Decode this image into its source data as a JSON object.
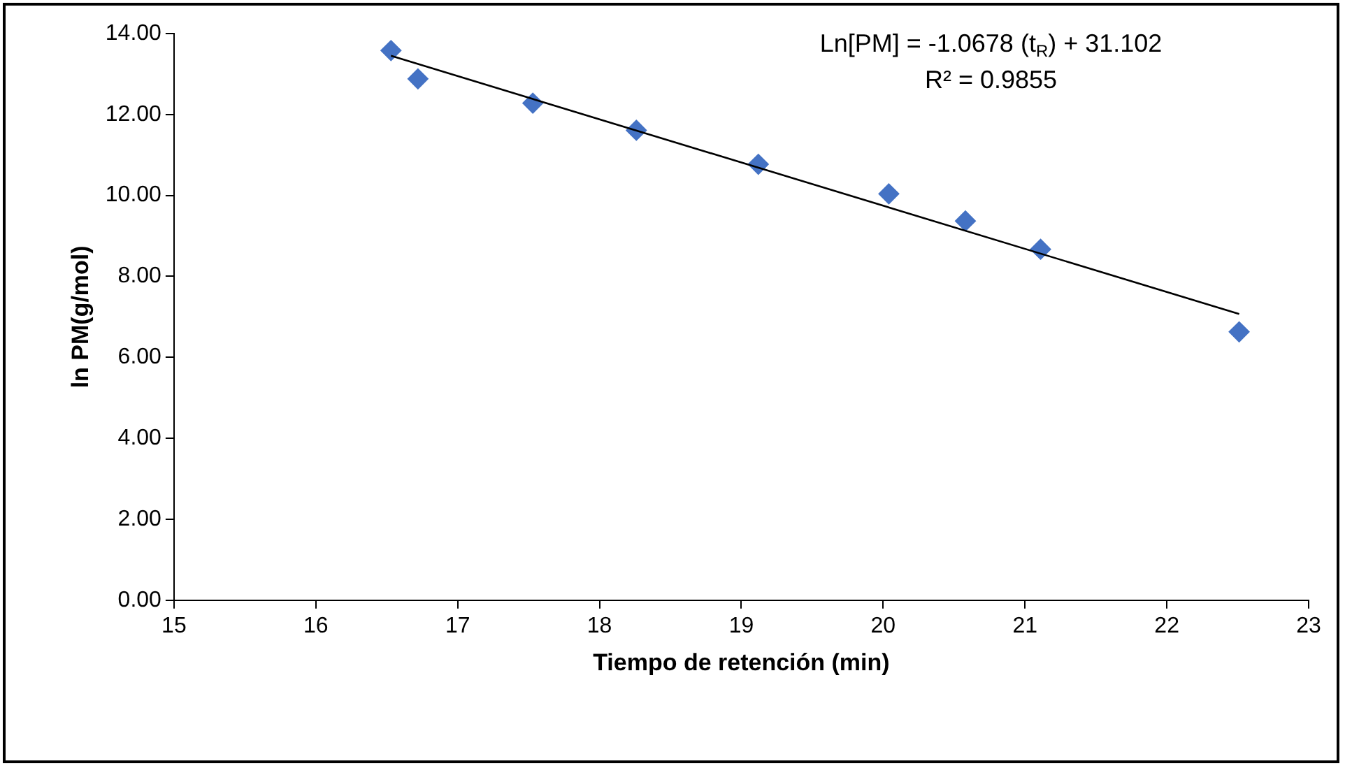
{
  "chart_data": {
    "type": "scatter",
    "xlabel": "Tiempo de retención (min)",
    "ylabel": "ln PM(g/mol)",
    "series": [
      {
        "type": "scatter",
        "color": "#4472c4",
        "x": [
          16.53,
          16.72,
          17.53,
          18.26,
          19.12,
          20.04,
          20.58,
          21.11,
          22.51
        ],
        "values": [
          13.58,
          12.88,
          12.28,
          11.61,
          10.77,
          10.04,
          9.37,
          8.67,
          6.63
        ],
        "marker": "diamond"
      },
      {
        "type": "line",
        "color": "#000000",
        "x": [
          16.53,
          22.51
        ],
        "values": [
          13.45,
          7.07
        ],
        "marker": "none"
      }
    ],
    "xlim": [
      15,
      23
    ],
    "xticks": [
      15,
      16,
      17,
      18,
      19,
      20,
      21,
      22,
      23
    ],
    "ylim": [
      0,
      14
    ],
    "yticks": [
      {
        "value": 0,
        "label": "0.00"
      },
      {
        "value": 2,
        "label": "2.00"
      },
      {
        "value": 4,
        "label": "4.00"
      },
      {
        "value": 6,
        "label": "6.00"
      },
      {
        "value": 8,
        "label": "8.00"
      },
      {
        "value": 10,
        "label": "10.00"
      },
      {
        "value": 12,
        "label": "12.00"
      },
      {
        "value": 14,
        "label": "14.00"
      }
    ],
    "grid": false,
    "legend": false,
    "annotations": [
      "Ln[PM] = -1.0678 (t$_{R}$) + 31.102",
      "R² = 0.9855"
    ]
  }
}
